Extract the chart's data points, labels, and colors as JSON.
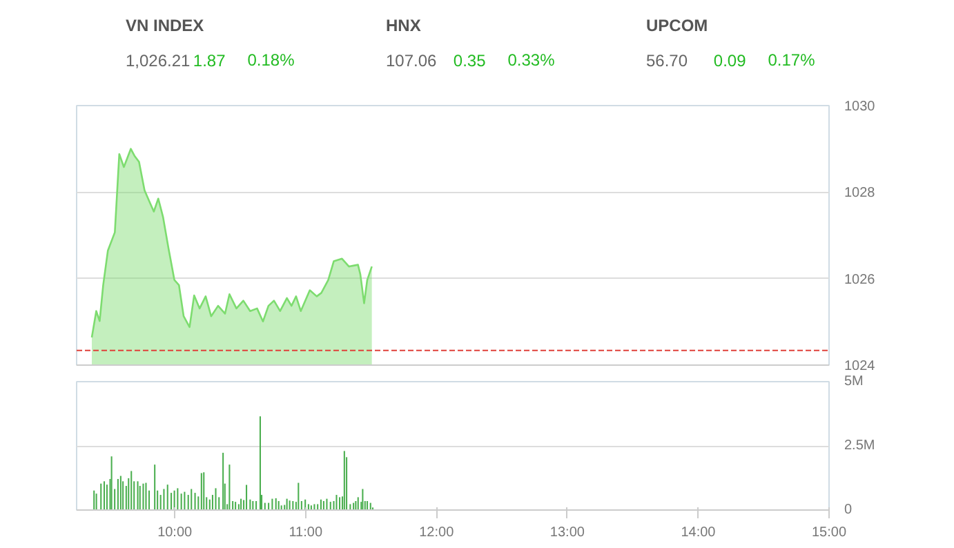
{
  "chart_data": [
    {
      "type": "other",
      "annotations": [
        "VN INDEX",
        "1,026.21",
        "1.87",
        "0.18%",
        "HNX",
        "107.06",
        "0.35",
        "0.33%",
        "UPCOM",
        "56.70",
        "0.09",
        "0.17%"
      ]
    },
    {
      "type": "area",
      "xlim": [
        9.25,
        15
      ],
      "ylim": [
        1024,
        1030
      ],
      "yticks": [
        1024,
        1026,
        1028,
        1030
      ],
      "grid": "y",
      "tick_labels": "y",
      "series": [
        {
          "color": "#7ddc6f",
          "x": [
            9.366,
            9.4,
            9.426,
            9.453,
            9.489,
            9.542,
            9.576,
            9.611,
            9.664,
            9.692,
            9.727,
            9.769,
            9.805,
            9.84,
            9.874,
            9.91,
            9.952,
            9.997,
            10.032,
            10.068,
            10.113,
            10.148,
            10.19,
            10.236,
            10.278,
            10.331,
            10.384,
            10.418,
            10.471,
            10.524,
            10.576,
            10.629,
            10.674,
            10.716,
            10.758,
            10.805,
            10.857,
            10.892,
            10.927,
            10.963,
            11.032,
            11.085,
            11.12,
            11.173,
            11.215,
            11.278,
            11.331,
            11.4,
            11.418,
            11.447,
            11.471,
            11.506
          ],
          "values": [
            1024.64,
            1025.25,
            1025.02,
            1025.85,
            1026.65,
            1027.07,
            1028.88,
            1028.58,
            1029.0,
            1028.84,
            1028.7,
            1028.04,
            1027.79,
            1027.55,
            1027.85,
            1027.43,
            1026.7,
            1025.97,
            1025.85,
            1025.13,
            1024.88,
            1025.61,
            1025.31,
            1025.59,
            1025.13,
            1025.37,
            1025.19,
            1025.64,
            1025.31,
            1025.49,
            1025.25,
            1025.31,
            1025.01,
            1025.37,
            1025.49,
            1025.25,
            1025.55,
            1025.37,
            1025.59,
            1025.25,
            1025.73,
            1025.59,
            1025.67,
            1025.97,
            1026.4,
            1026.46,
            1026.28,
            1026.32,
            1026.1,
            1025.43,
            1025.97,
            1026.28
          ]
        }
      ],
      "ref_lines": [
        {
          "axis": "y",
          "value": 1024.34,
          "color": "#e0403a",
          "line_style": "dashed"
        }
      ]
    },
    {
      "type": "bar",
      "xlim": [
        9.25,
        15
      ],
      "xticks": [
        {
          "value": 10,
          "label": "10:00"
        },
        {
          "value": 11,
          "label": "11:00"
        },
        {
          "value": 12,
          "label": "12:00"
        },
        {
          "value": 13,
          "label": "13:00"
        },
        {
          "value": 14,
          "label": "14:00"
        },
        {
          "value": 15,
          "label": "15:00"
        }
      ],
      "ylim": [
        0,
        5
      ],
      "yticks": [
        0,
        {
          "value": 2.5,
          "label": "2.5M"
        },
        {
          "value": 5,
          "label": "5M"
        }
      ],
      "grid": "y",
      "series": [
        {
          "color": "#4caf50",
          "x": [
            9.383,
            9.401,
            9.436,
            9.461,
            9.482,
            9.506,
            9.517,
            9.541,
            9.566,
            9.587,
            9.604,
            9.629,
            9.647,
            9.668,
            9.689,
            9.717,
            9.734,
            9.759,
            9.78,
            9.804,
            9.847,
            9.868,
            9.892,
            9.917,
            9.945,
            9.973,
            9.997,
            10.022,
            10.05,
            10.075,
            10.103,
            10.127,
            10.155,
            10.18,
            10.204,
            10.222,
            10.243,
            10.267,
            10.289,
            10.313,
            10.338,
            10.369,
            10.383,
            10.401,
            10.418,
            10.443,
            10.464,
            10.489,
            10.506,
            10.527,
            10.548,
            10.576,
            10.597,
            10.622,
            10.653,
            10.664,
            10.689,
            10.717,
            10.745,
            10.773,
            10.794,
            10.815,
            10.839,
            10.857,
            10.878,
            10.903,
            10.927,
            10.945,
            10.969,
            10.997,
            11.022,
            11.043,
            11.067,
            11.092,
            11.117,
            11.138,
            11.162,
            11.19,
            11.215,
            11.236,
            11.26,
            11.281,
            11.296,
            11.313,
            11.341,
            11.366,
            11.383,
            11.401,
            11.425,
            11.436,
            11.454,
            11.471,
            11.496,
            11.513
          ],
          "values": [
            0.76,
            0.64,
            1.03,
            1.12,
            0.99,
            1.21,
            2.09,
            0.82,
            1.21,
            1.33,
            1.12,
            0.94,
            1.24,
            1.52,
            1.12,
            1.12,
            0.94,
            1.03,
            1.06,
            0.76,
            1.77,
            0.76,
            0.59,
            0.82,
            0.99,
            0.67,
            0.76,
            0.85,
            0.64,
            0.71,
            0.59,
            0.82,
            0.67,
            0.53,
            1.44,
            1.47,
            0.5,
            0.41,
            0.59,
            0.85,
            0.5,
            2.23,
            1.03,
            0.23,
            1.77,
            0.35,
            0.32,
            0.23,
            0.44,
            0.39,
            0.98,
            0.41,
            0.35,
            0.35,
            3.65,
            0.59,
            0.28,
            0.28,
            0.44,
            0.46,
            0.35,
            0.18,
            0.2,
            0.44,
            0.37,
            0.35,
            0.32,
            1.06,
            0.35,
            0.41,
            0.23,
            0.18,
            0.23,
            0.23,
            0.41,
            0.35,
            0.44,
            0.32,
            0.35,
            0.59,
            0.5,
            0.53,
            2.3,
            2.06,
            0.23,
            0.28,
            0.35,
            0.5,
            0.32,
            0.82,
            0.35,
            0.35,
            0.28,
            0.1
          ]
        }
      ]
    }
  ]
}
